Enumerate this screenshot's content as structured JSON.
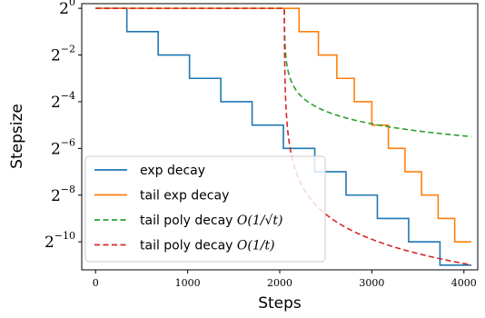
{
  "chart_data": {
    "type": "line",
    "xlabel": "Steps",
    "ylabel": "Stepsize",
    "xlim": [
      -150,
      4150
    ],
    "ylim_log2": [
      -11.2,
      0.2
    ],
    "y_scale": "log2",
    "x_ticks": [
      0,
      1000,
      2000,
      3000,
      4000
    ],
    "x_tick_labels": [
      "0",
      "1000",
      "2000",
      "3000",
      "4000"
    ],
    "y_ticks_log2": [
      0,
      -2,
      -4,
      -6,
      -8,
      -10
    ],
    "y_tick_labels": [
      {
        "base": "2",
        "exp": "0"
      },
      {
        "base": "2",
        "exp": "−2"
      },
      {
        "base": "2",
        "exp": "−4"
      },
      {
        "base": "2",
        "exp": "−6"
      },
      {
        "base": "2",
        "exp": "−8"
      },
      {
        "base": "2",
        "exp": "−10"
      }
    ],
    "legend_position": "lower-left",
    "series": [
      {
        "name": "exp decay",
        "color": "#1f77b4",
        "style": "solid",
        "kind": "step",
        "x": [
          0,
          340,
          680,
          1020,
          1360,
          1700,
          2040,
          2380,
          2720,
          3060,
          3400,
          3740,
          4080
        ],
        "y_log2": [
          0,
          -1,
          -2,
          -3,
          -4,
          -5,
          -6,
          -7,
          -8,
          -9,
          -10,
          -11,
          -11
        ]
      },
      {
        "name": "tail exp decay",
        "color": "#ff7f0e",
        "style": "solid",
        "kind": "step",
        "x": [
          0,
          2210,
          2420,
          2620,
          2810,
          3000,
          3180,
          3360,
          3540,
          3720,
          3900,
          4080
        ],
        "y_log2": [
          0,
          -1,
          -2,
          -3,
          -4,
          -5,
          -6,
          -7,
          -8,
          -9,
          -10,
          -10
        ]
      },
      {
        "name": "tail poly decay $\\mathcal{O}(1/\\sqrt{t})$",
        "color": "#2ca02c",
        "style": "dashed",
        "kind": "formula",
        "formula": "sqrt",
        "x_start": 0,
        "x_switch": 2050,
        "x_end": 4080,
        "t0": 1.0
      },
      {
        "name": "tail poly decay $\\mathcal{O}(1/t)$",
        "color": "#d62728",
        "style": "dashed",
        "kind": "formula",
        "formula": "inverse",
        "x_start": 0,
        "x_switch": 2050,
        "x_end": 4080,
        "t0": 1.0
      }
    ]
  },
  "legend": {
    "items": [
      {
        "label": "exp decay",
        "color": "#1f77b4",
        "style": "solid"
      },
      {
        "label": "tail exp decay",
        "color": "#ff7f0e",
        "style": "solid"
      },
      {
        "label_prefix": "tail poly decay ",
        "label_math": "O(1/√t)",
        "color": "#2ca02c",
        "style": "dashed"
      },
      {
        "label_prefix": "tail poly decay ",
        "label_math": "O(1/t)",
        "color": "#d62728",
        "style": "dashed"
      }
    ]
  }
}
